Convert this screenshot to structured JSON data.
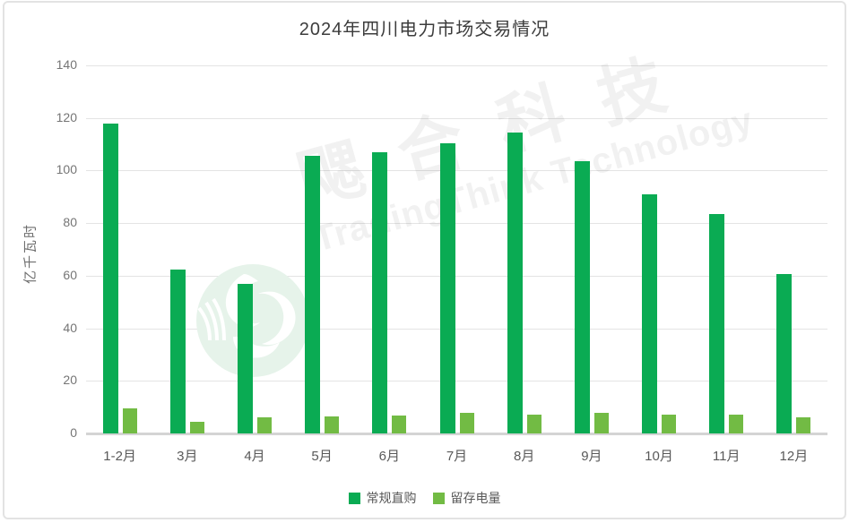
{
  "watermark": {
    "cn": "飔合科技",
    "en": "TradingThink Technology"
  },
  "chart_data": {
    "type": "bar",
    "title": "2024年四川电力市场交易情况",
    "ylabel": "亿千瓦时",
    "xlabel": "",
    "categories": [
      "1-2月",
      "3月",
      "4月",
      "5月",
      "6月",
      "7月",
      "8月",
      "9月",
      "10月",
      "11月",
      "12月"
    ],
    "series": [
      {
        "name": "常规直购",
        "color": "#0aab53",
        "values": [
          118,
          62.5,
          57,
          105.5,
          107,
          110.5,
          114.5,
          103.5,
          91,
          83.5,
          60.5
        ]
      },
      {
        "name": "留存电量",
        "color": "#72bb44",
        "values": [
          9.5,
          4.5,
          6.2,
          6.6,
          6.7,
          7.7,
          7.2,
          7.7,
          7,
          7,
          6
        ]
      }
    ],
    "ylim": [
      0,
      140
    ],
    "ytick_step": 20,
    "grid": true,
    "legend_position": "bottom",
    "axis_colors": {
      "gridline": "#e4e4e4",
      "axis_line": "#d4d4d4",
      "y_tick_text": "#757575",
      "x_tick_text": "#595959",
      "title_text": "#3c3c3c"
    }
  }
}
